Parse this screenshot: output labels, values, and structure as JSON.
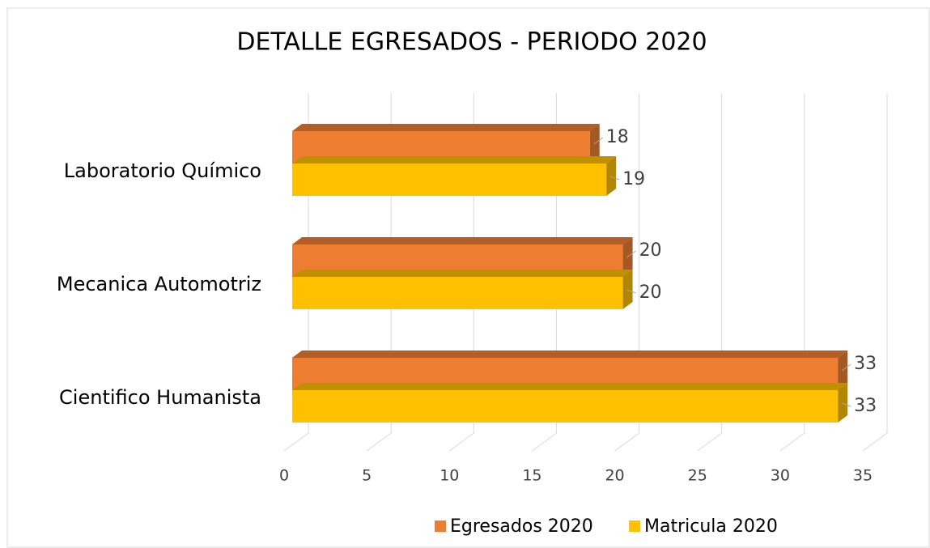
{
  "chart_data": {
    "type": "bar3d",
    "orientation": "horizontal",
    "title": "DETALLE EGRESADOS - PERIODO 2020",
    "categories": [
      "Laboratorio Químico",
      "Mecanica Automotriz",
      "Cientifico Humanista"
    ],
    "series": [
      {
        "name": "Egresados 2020",
        "color": "#ED7D31",
        "values": [
          18,
          20,
          33
        ]
      },
      {
        "name": "Matricula 2020",
        "color": "#FFC000",
        "values": [
          19,
          20,
          33
        ]
      }
    ],
    "xlim": [
      0,
      35
    ],
    "xticks": [
      0,
      5,
      10,
      15,
      20,
      25,
      30,
      35
    ],
    "grid": true,
    "legend": "bottom"
  }
}
